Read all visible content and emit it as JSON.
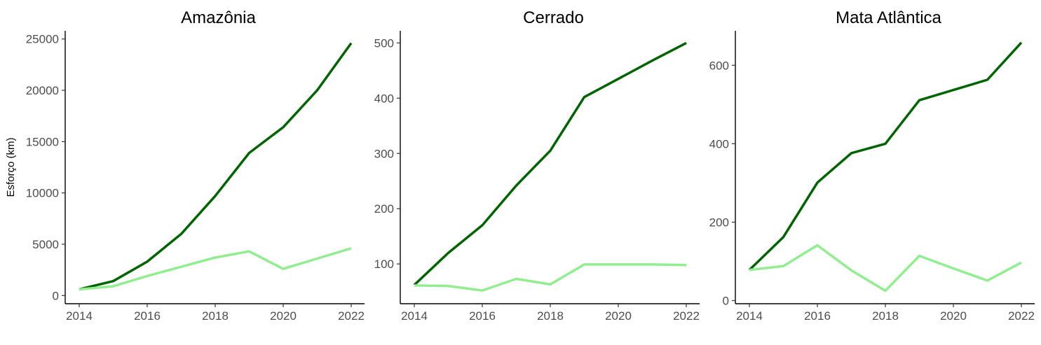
{
  "y_axis_title": "Esforço (km)",
  "colors": {
    "cumulative": "#006400",
    "annual": "#90EE90"
  },
  "chart_data": [
    {
      "type": "line",
      "title": "Amazônia",
      "xlabel": "",
      "ylabel": "Esforço (km)",
      "x": [
        2014,
        2015,
        2016,
        2017,
        2018,
        2019,
        2020,
        2021,
        2022
      ],
      "x_ticks": [
        2014,
        2016,
        2018,
        2020,
        2022
      ],
      "xlim": [
        2014,
        2022
      ],
      "y_ticks": [
        0,
        5000,
        10000,
        15000,
        20000,
        25000
      ],
      "ylim": [
        -800,
        25800
      ],
      "grid": false,
      "legend": "none",
      "series": [
        {
          "color": "#006400",
          "values": [
            600,
            1400,
            3300,
            6000,
            9700,
            13900,
            16400,
            20000,
            24600
          ]
        },
        {
          "color": "#90EE90",
          "values": [
            600,
            900,
            1900,
            2800,
            3700,
            4300,
            2600,
            3600,
            4600
          ]
        }
      ]
    },
    {
      "type": "line",
      "title": "Cerrado",
      "xlabel": "",
      "ylabel": "",
      "x": [
        2014,
        2015,
        2016,
        2017,
        2018,
        2019,
        2020,
        2021,
        2022
      ],
      "x_ticks": [
        2014,
        2016,
        2018,
        2020,
        2022
      ],
      "xlim": [
        2014,
        2022
      ],
      "y_ticks": [
        100,
        200,
        300,
        400,
        500
      ],
      "ylim": [
        28,
        522
      ],
      "grid": false,
      "legend": "none",
      "series": [
        {
          "color": "#006400",
          "values": [
            62,
            120,
            170,
            242,
            305,
            402,
            435,
            468,
            500
          ]
        },
        {
          "color": "#90EE90",
          "values": [
            61,
            60,
            52,
            73,
            63,
            99,
            99,
            99,
            98
          ]
        }
      ]
    },
    {
      "type": "line",
      "title": "Mata Atlântica",
      "xlabel": "",
      "ylabel": "",
      "x": [
        2014,
        2015,
        2016,
        2017,
        2018,
        2019,
        2020,
        2021,
        2022
      ],
      "x_ticks": [
        2014,
        2016,
        2018,
        2020,
        2022
      ],
      "xlim": [
        2014,
        2022
      ],
      "y_ticks": [
        0,
        200,
        400,
        600
      ],
      "ylim": [
        -8,
        688
      ],
      "grid": false,
      "legend": "none",
      "series": [
        {
          "color": "#006400",
          "values": [
            78,
            162,
            301,
            376,
            400,
            511,
            537,
            563,
            658
          ]
        },
        {
          "color": "#90EE90",
          "values": [
            78,
            88,
            141,
            77,
            25,
            114,
            82,
            51,
            97
          ]
        }
      ]
    }
  ]
}
